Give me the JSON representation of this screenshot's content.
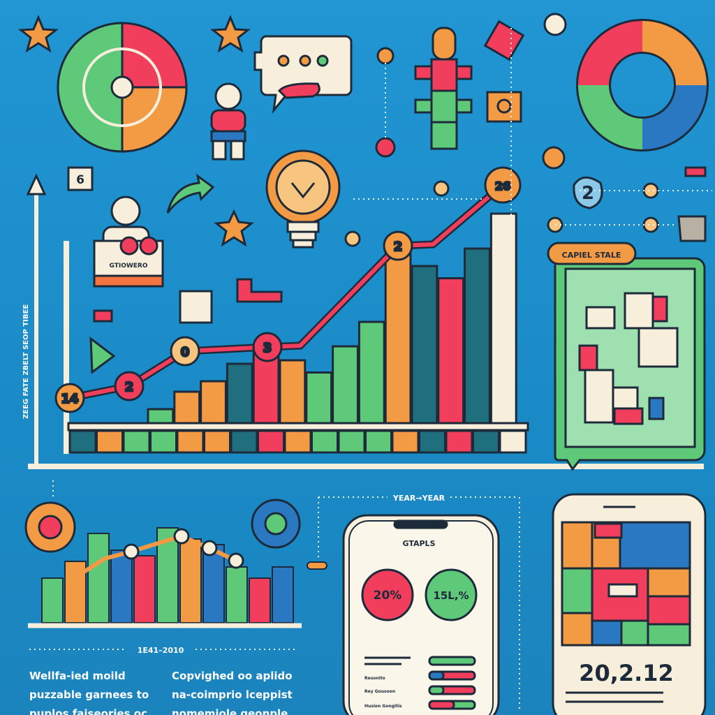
{
  "labels": {
    "axis_side": "ZEEG FATE ZBELT SEOP TIBEE",
    "box_six": "6",
    "person_card": "GTIOWERO",
    "badge_two": "2",
    "legend_tag": "CAPIEL STALE",
    "year_header": "YEAR→YEAR",
    "range_header": "1E41–2010",
    "phone_title": "GTAPLS",
    "stat_red": "20%",
    "stat_green": "15L,%",
    "row_labels": [
      "Resonito",
      "Rey Gousoon",
      "Husion Gongitis"
    ],
    "phone_date": "20,2.12"
  },
  "captions": {
    "left": "Wellfa-ied moild\npuzzable garnees to\npuplos fajseories oc",
    "right": "Copvighed oo aplido\nna-coimprio lceppist\nnomemiole geonple"
  },
  "main_chart": {
    "point_labels": [
      "14",
      "2",
      "0",
      "3",
      "2",
      "26"
    ],
    "bar_levels": [
      8,
      18,
      24,
      34,
      41,
      36,
      29,
      44,
      58,
      100,
      90,
      83,
      100,
      120
    ],
    "bar_colors": [
      "#5fc97a",
      "#f39a45",
      "#f39a45",
      "#1f6f7f",
      "#f03e5c",
      "#f39a45",
      "#5fc97a",
      "#5fc97a",
      "#5fc97a",
      "#f39a45",
      "#1f6f7f",
      "#f03e5c",
      "#1f6f7f",
      "#f7efdc"
    ]
  },
  "mini_chart": {
    "bar_levels": [
      40,
      55,
      80,
      65,
      60,
      85,
      75,
      70,
      50,
      40,
      50
    ],
    "bar_colors": [
      "#5fc97a",
      "#f39a45",
      "#5fc97a",
      "#2b78c2",
      "#f03e5c",
      "#5fc97a",
      "#f39a45",
      "#2b78c2",
      "#5fc97a",
      "#f03e5c",
      "#2b78c2"
    ]
  },
  "colors": {
    "background": "#1f8fce",
    "red": "#f03e5c",
    "green": "#5fc97a",
    "orange": "#f39a45",
    "blue": "#2b78c2",
    "cream": "#f7efdc",
    "outline": "#1d2a3a"
  }
}
